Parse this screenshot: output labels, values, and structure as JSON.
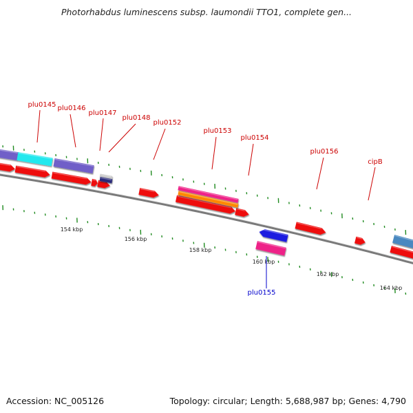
{
  "title": "Photorhabdus luminescens subsp. laumondii TTO1, complete gen...",
  "footer": {
    "accession": "Accession: NC_005126",
    "info": "Topology: circular; Length: 5,688,987 bp; Genes: 4,790"
  },
  "colors": {
    "backbone": "#7a7a7a",
    "tick": "#1f8a1f",
    "label_forward": "#cc0000",
    "label_reverse": "#0000cc",
    "cds_red": "#ee1111",
    "magenta": "#ee2288",
    "orange": "#ff8800",
    "purple": "#6f5fc8",
    "cyan": "#22e8ee",
    "blue": "#1a1ae0",
    "steelblue": "#4a88c0",
    "grey": "#c8c8c8",
    "navy": "#2a2a7a"
  },
  "tick_labels": [
    "154 kbp",
    "156 kbp",
    "158 kbp",
    "160 kbp",
    "162 kbp",
    "164 kbp"
  ],
  "gene_labels": [
    {
      "text": "plu0145",
      "strand": "forward"
    },
    {
      "text": "plu0146",
      "strand": "forward"
    },
    {
      "text": "plu0147",
      "strand": "forward"
    },
    {
      "text": "plu0148",
      "strand": "forward"
    },
    {
      "text": "plu0152",
      "strand": "forward"
    },
    {
      "text": "plu0153",
      "strand": "forward"
    },
    {
      "text": "plu0154",
      "strand": "forward"
    },
    {
      "text": "plu0156",
      "strand": "forward"
    },
    {
      "text": "cipB",
      "strand": "forward"
    },
    {
      "text": "plu0155",
      "strand": "reverse"
    }
  ]
}
